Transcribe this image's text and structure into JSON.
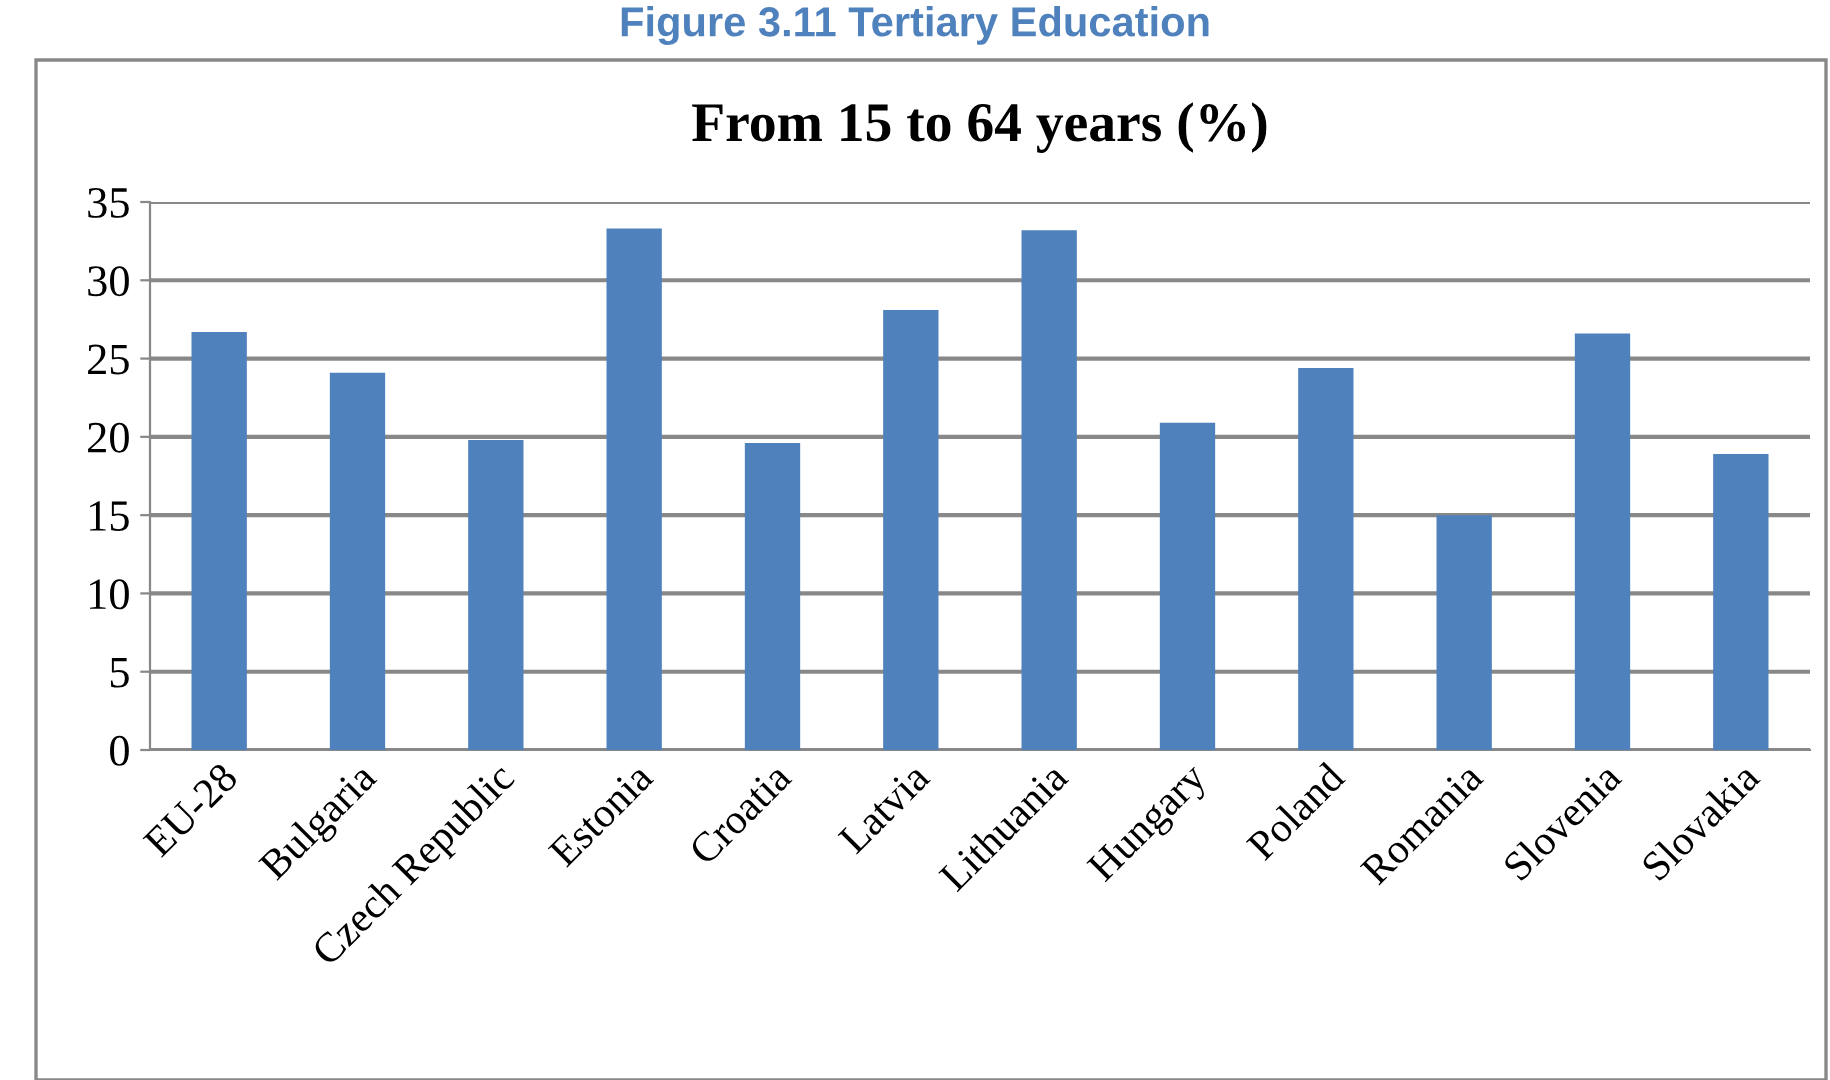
{
  "chart_data": {
    "type": "bar",
    "title": "From 15 to 64 years (%)",
    "annotations": [
      "Figure 3.11 Tertiary Education"
    ],
    "categories": [
      "EU-28",
      "Bulgaria",
      "Czech Republic",
      "Estonia",
      "Croatia",
      "Latvia",
      "Lithuania",
      "Hungary",
      "Poland",
      "Romania",
      "Slovenia",
      "Slovakia"
    ],
    "values": [
      26.7,
      24.1,
      19.8,
      33.3,
      19.6,
      28.1,
      33.2,
      20.9,
      24.4,
      15.0,
      26.6,
      18.9
    ],
    "color": "#4f81bd",
    "ylim": [
      0,
      35
    ],
    "yticks": [
      0,
      5,
      10,
      15,
      20,
      25,
      30,
      35
    ],
    "grid": "y"
  }
}
